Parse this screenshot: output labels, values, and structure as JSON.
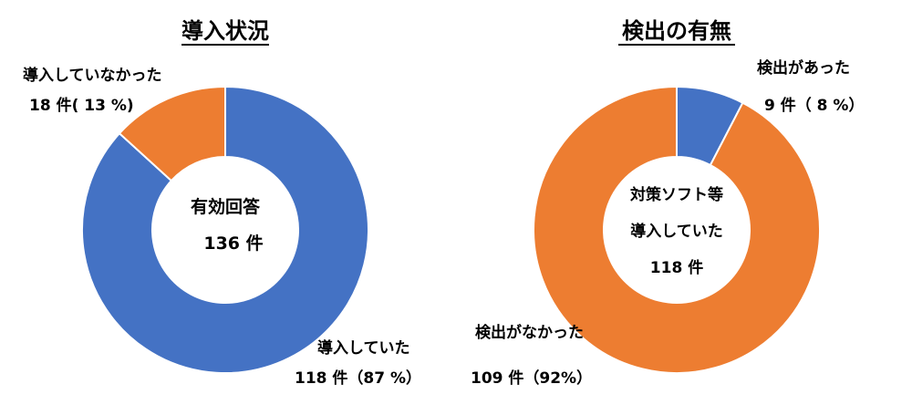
{
  "chart_data": [
    {
      "type": "pie",
      "title": "導入状況",
      "center_text": [
        "有効回答",
        "136 件"
      ],
      "categories": [
        "導入していた",
        "導入していなかった"
      ],
      "values": [
        118,
        18
      ],
      "percents": [
        87,
        13
      ],
      "colors": [
        "#4472c4",
        "#ed7d31"
      ],
      "labels": [
        {
          "name": "導入していた",
          "detail": "118 件（87 %）"
        },
        {
          "name": "導入していなかった",
          "detail": "18 件( 13 %)"
        }
      ]
    },
    {
      "type": "pie",
      "title": "検出の有無",
      "center_text": [
        "対策ソフト等",
        "導入していた",
        "118 件"
      ],
      "categories": [
        "検出があった",
        "検出がなかった"
      ],
      "values": [
        9,
        109
      ],
      "percents": [
        8,
        92
      ],
      "colors": [
        "#4472c4",
        "#ed7d31"
      ],
      "labels": [
        {
          "name": "検出があった",
          "detail": "9 件（ 8 %）"
        },
        {
          "name": "検出がなかった",
          "detail": "109 件（92%）"
        }
      ]
    }
  ]
}
